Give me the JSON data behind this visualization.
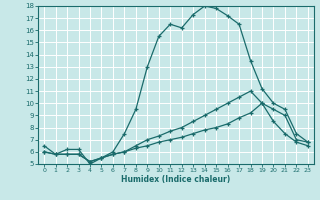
{
  "xlabel": "Humidex (Indice chaleur)",
  "xlim": [
    -0.5,
    23.5
  ],
  "ylim": [
    5,
    18
  ],
  "xticks": [
    0,
    1,
    2,
    3,
    4,
    5,
    6,
    7,
    8,
    9,
    10,
    11,
    12,
    13,
    14,
    15,
    16,
    17,
    18,
    19,
    20,
    21,
    22,
    23
  ],
  "yticks": [
    5,
    6,
    7,
    8,
    9,
    10,
    11,
    12,
    13,
    14,
    15,
    16,
    17,
    18
  ],
  "bg_color": "#c8e8e8",
  "line_color": "#1a6b6b",
  "grid_color": "#ffffff",
  "line1_x": [
    0,
    1,
    2,
    3,
    4,
    5,
    6,
    7,
    8,
    9,
    10,
    11,
    12,
    13,
    14,
    15,
    16,
    17,
    18,
    19,
    20,
    21,
    22,
    23
  ],
  "line1_y": [
    6.5,
    5.8,
    6.2,
    6.2,
    5.0,
    5.5,
    6.0,
    7.5,
    9.5,
    13.0,
    15.5,
    16.5,
    16.2,
    17.3,
    18.0,
    17.8,
    17.2,
    16.5,
    13.5,
    11.2,
    10.0,
    9.5,
    7.5,
    6.8
  ],
  "line2_x": [
    0,
    1,
    2,
    3,
    4,
    5,
    6,
    7,
    8,
    9,
    10,
    11,
    12,
    13,
    14,
    15,
    16,
    17,
    18,
    19,
    20,
    21,
    22,
    23
  ],
  "line2_y": [
    6.0,
    5.8,
    5.8,
    5.8,
    5.2,
    5.5,
    5.8,
    6.0,
    6.5,
    7.0,
    7.3,
    7.7,
    8.0,
    8.5,
    9.0,
    9.5,
    10.0,
    10.5,
    11.0,
    10.0,
    8.5,
    7.5,
    6.8,
    6.5
  ],
  "line3_x": [
    0,
    1,
    2,
    3,
    4,
    5,
    6,
    7,
    8,
    9,
    10,
    11,
    12,
    13,
    14,
    15,
    16,
    17,
    18,
    19,
    20,
    21,
    22,
    23
  ],
  "line3_y": [
    6.0,
    5.8,
    5.8,
    5.8,
    5.2,
    5.5,
    5.8,
    6.0,
    6.3,
    6.5,
    6.8,
    7.0,
    7.2,
    7.5,
    7.8,
    8.0,
    8.3,
    8.8,
    9.2,
    10.0,
    9.5,
    9.0,
    7.0,
    6.8
  ]
}
